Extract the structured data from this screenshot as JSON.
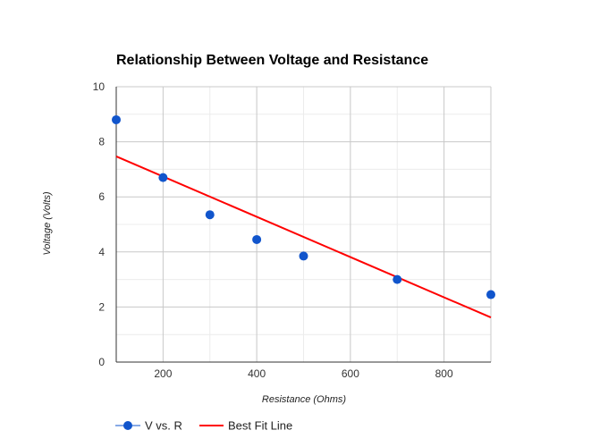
{
  "chart_data": {
    "type": "scatter",
    "title": "Relationship Between Voltage and Resistance",
    "xlabel": "Resistance (Ohms)",
    "ylabel": "Voltage (Volts)",
    "xlim": [
      100,
      900
    ],
    "ylim": [
      0,
      10
    ],
    "x_ticks": [
      200,
      400,
      600,
      800
    ],
    "y_ticks": [
      0,
      2,
      4,
      6,
      8,
      10
    ],
    "x_minor_step": 100,
    "y_minor_step": 1,
    "grid": true,
    "legend_position": "bottom-left",
    "series": [
      {
        "name": "V vs. R",
        "kind": "scatter",
        "color": "#1155cc",
        "points": [
          {
            "x": 100,
            "y": 8.8
          },
          {
            "x": 200,
            "y": 6.7
          },
          {
            "x": 300,
            "y": 5.35
          },
          {
            "x": 400,
            "y": 4.45
          },
          {
            "x": 500,
            "y": 3.85
          },
          {
            "x": 700,
            "y": 3.0
          },
          {
            "x": 900,
            "y": 2.45
          }
        ]
      },
      {
        "name": "Best Fit Line",
        "kind": "line",
        "color": "#ff0000",
        "points": [
          {
            "x": 100,
            "y": 7.47
          },
          {
            "x": 900,
            "y": 1.62
          }
        ]
      }
    ]
  }
}
